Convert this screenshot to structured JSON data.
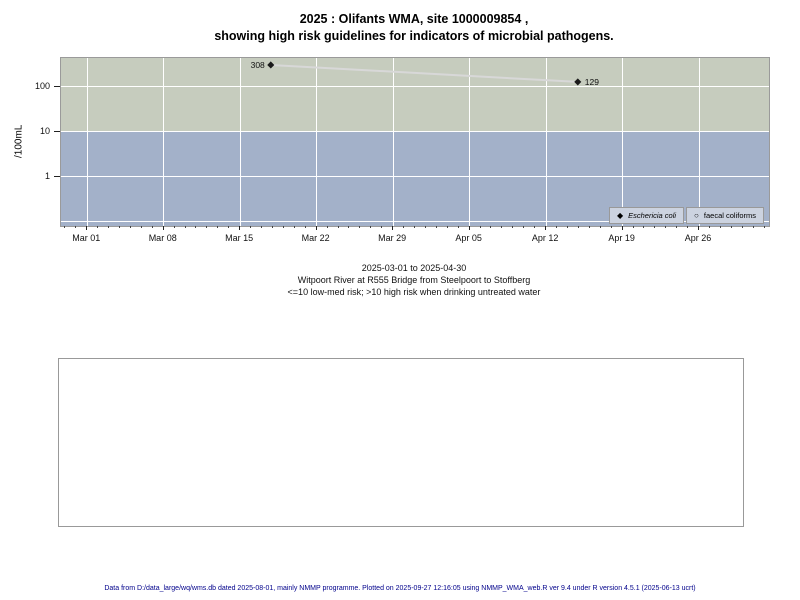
{
  "title": {
    "line1": "2025 : Olifants WMA, site 1000009854 ,",
    "line2": "showing high risk guidelines for indicators of microbial pathogens."
  },
  "subtitle": {
    "line1": "2025-03-01 to 2025-04-30",
    "line2": "Witpoort River at R555 Bridge from Steelpoort to Stoffberg",
    "line3": "<=10 low-med risk; >10 high risk when drinking untreated water"
  },
  "footer": {
    "text": "Data from D:/data_large/wq/wms.db dated 2025-08-01, mainly NMMP programme. Plotted on 2025-09-27 12:16:05 using NMMP_WMA_web.R ver 9.4 under R version 4.5.1 (2025-06-13 ucrt)"
  },
  "colors": {
    "band_high_risk": "#c6ccbe",
    "band_low_med_risk": "#a3b1c9",
    "gridline": "#ffffff",
    "series_line": "#d8d8d8",
    "marker": "#1a1a1a",
    "legend_bg": "#ccd3e0",
    "footer_text": "#00008b"
  },
  "chart_data": {
    "type": "line",
    "title": "2025 : Olifants WMA, site 1000009854 , showing high risk guidelines for indicators of microbial pathogens.",
    "xlabel": "",
    "ylabel": "/100mL",
    "y_scale": "log10",
    "ylim": [
      0.08,
      440
    ],
    "y_ticks": [
      100,
      10,
      1
    ],
    "y_gridlines": [
      100,
      10,
      1,
      0.1
    ],
    "grid": true,
    "x_axis": {
      "start_date": "2025-03-01",
      "end_date": "2025-04-30",
      "lim_days": [
        -2.4,
        62.4
      ],
      "major_ticks": [
        {
          "day": 0,
          "label": "Mar 01"
        },
        {
          "day": 7,
          "label": "Mar 08"
        },
        {
          "day": 14,
          "label": "Mar 15"
        },
        {
          "day": 21,
          "label": "Mar 22"
        },
        {
          "day": 28,
          "label": "Mar 29"
        },
        {
          "day": 35,
          "label": "Apr 05"
        },
        {
          "day": 42,
          "label": "Apr 12"
        },
        {
          "day": 49,
          "label": "Apr 19"
        },
        {
          "day": 56,
          "label": "Apr 26"
        }
      ],
      "minor_tick_every_days": 1
    },
    "risk_bands": [
      {
        "name": "high risk (>10)",
        "from": 10,
        "to": 440,
        "color": "#c6ccbe"
      },
      {
        "name": "low-med risk (<=10)",
        "from": 0.08,
        "to": 10,
        "color": "#a3b1c9"
      }
    ],
    "series": [
      {
        "name": "Eschericia coli",
        "marker": "filled-diamond",
        "color": "#1a1a1a",
        "line_color": "#d8d8d8",
        "points": [
          {
            "date": "2025-03-17",
            "day": 16.8,
            "value": 308,
            "label": "308",
            "label_side": "left"
          },
          {
            "date": "2025-04-15",
            "day": 44.9,
            "value": 129,
            "label": "129",
            "label_side": "right"
          }
        ]
      },
      {
        "name": "faecal coliforms",
        "marker": "open-circle",
        "color": "#1a1a1a",
        "points": []
      }
    ],
    "legend": {
      "position": "bottom-right",
      "entries": [
        {
          "symbol": "filled-diamond",
          "label": "Eschericia coli",
          "italic": true
        },
        {
          "symbol": "open-circle",
          "label": "faecal coliforms",
          "italic": false
        }
      ]
    }
  }
}
